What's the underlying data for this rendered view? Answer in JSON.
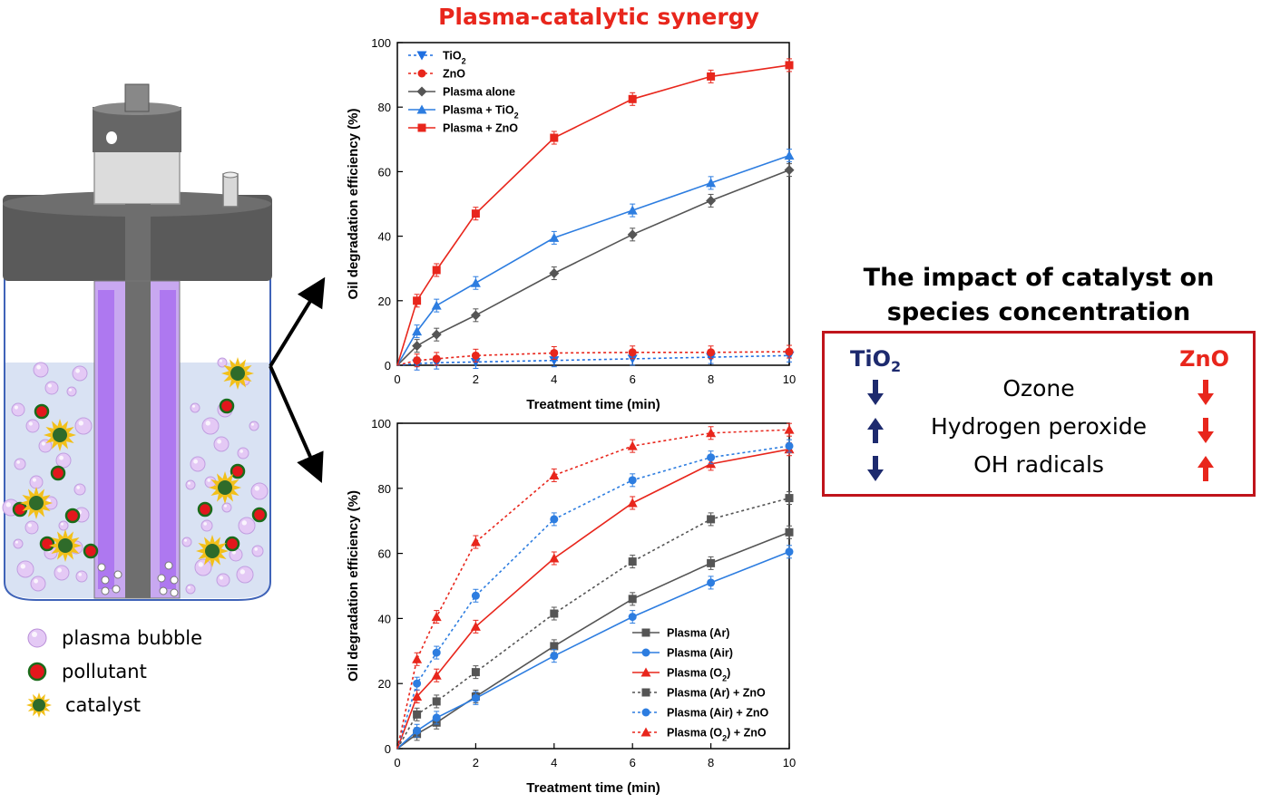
{
  "title": "Plasma-catalytic synergy",
  "legend_left": [
    {
      "label": "plasma bubble",
      "icon": "plasma-bubble-icon"
    },
    {
      "label": "pollutant",
      "icon": "pollutant-icon"
    },
    {
      "label": "catalyst",
      "icon": "catalyst-icon"
    }
  ],
  "impact": {
    "title_line1": "The impact of catalyst on",
    "title_line2": "species concentration",
    "col_left": "TiO",
    "col_left_sub": "2",
    "col_right": "ZnO",
    "rows": [
      {
        "species": "Ozone",
        "left": "down",
        "right": "down"
      },
      {
        "species": "Hydrogen peroxide",
        "left": "up",
        "right": "down"
      },
      {
        "species": "OH radicals",
        "left": "down",
        "right": "up"
      }
    ]
  },
  "chart_data": [
    {
      "type": "line",
      "xlabel": "Treatment time (min)",
      "ylabel": "Oil degradation efficiency (%)",
      "xlim": [
        0,
        10
      ],
      "ylim": [
        0,
        100
      ],
      "xticks": [
        0,
        2,
        4,
        6,
        8,
        10
      ],
      "yticks": [
        0,
        20,
        40,
        60,
        80,
        100
      ],
      "legend_position": "top-left",
      "x": [
        0,
        0.5,
        1,
        2,
        4,
        6,
        8,
        10
      ],
      "series": [
        {
          "name": "TiO",
          "sub": "2",
          "tail": "",
          "color": "#1f6fe0",
          "marker": "tri-down",
          "dash": true,
          "values": [
            0,
            0.5,
            0.8,
            1.0,
            1.5,
            2.0,
            2.5,
            3.0
          ]
        },
        {
          "name": "ZnO",
          "sub": "",
          "tail": "",
          "color": "#e8261c",
          "marker": "circle",
          "dash": true,
          "values": [
            0,
            1.5,
            2.0,
            3.0,
            3.8,
            4.0,
            4.0,
            4.2
          ]
        },
        {
          "name": "Plasma alone",
          "sub": "",
          "tail": "",
          "color": "#555555",
          "marker": "diamond",
          "dash": false,
          "values": [
            0,
            6,
            9.5,
            15.5,
            28.5,
            40.5,
            51,
            60.5
          ]
        },
        {
          "name": "Plasma + TiO",
          "sub": "2",
          "tail": "",
          "color": "#2d7de0",
          "marker": "tri-up",
          "dash": false,
          "values": [
            0,
            10.5,
            18.5,
            25.5,
            39.5,
            48,
            56.5,
            65
          ]
        },
        {
          "name": "Plasma + ZnO",
          "sub": "",
          "tail": "",
          "color": "#e8261c",
          "marker": "square",
          "dash": false,
          "values": [
            0,
            20,
            29.5,
            47,
            70.5,
            82.5,
            89.5,
            93
          ]
        }
      ]
    },
    {
      "type": "line",
      "xlabel": "Treatment time (min)",
      "ylabel": "Oil degradation efficiency (%)",
      "xlim": [
        0,
        10
      ],
      "ylim": [
        0,
        100
      ],
      "xticks": [
        0,
        2,
        4,
        6,
        8,
        10
      ],
      "yticks": [
        0,
        20,
        40,
        60,
        80,
        100
      ],
      "legend_position": "bottom-right",
      "x": [
        0,
        0.5,
        1,
        2,
        4,
        6,
        8,
        10
      ],
      "series": [
        {
          "name": "Plasma (Ar)",
          "sub": "",
          "tail": "",
          "color": "#555555",
          "marker": "square",
          "dash": false,
          "values": [
            0,
            4.5,
            8,
            16,
            31.5,
            46,
            57,
            66.5
          ]
        },
        {
          "name": "Plasma (Air)",
          "sub": "",
          "tail": "",
          "color": "#2d7de0",
          "marker": "circle",
          "dash": false,
          "values": [
            0,
            5.5,
            9.5,
            15.5,
            28.5,
            40.5,
            51,
            60.5
          ]
        },
        {
          "name": "Plasma (O",
          "sub": "2",
          "tail": ")",
          "color": "#e8261c",
          "marker": "tri-up",
          "dash": false,
          "values": [
            0,
            16,
            22.5,
            37.5,
            58.5,
            75.5,
            87.5,
            92
          ]
        },
        {
          "name": "Plasma (Ar) + ZnO",
          "sub": "",
          "tail": "",
          "color": "#555555",
          "marker": "square",
          "dash": true,
          "values": [
            0,
            10.5,
            14.5,
            23.5,
            41.5,
            57.5,
            70.5,
            77
          ]
        },
        {
          "name": "Plasma (Air) + ZnO",
          "sub": "",
          "tail": "",
          "color": "#2d7de0",
          "marker": "circle",
          "dash": true,
          "values": [
            0,
            20,
            29.5,
            47,
            70.5,
            82.5,
            89.5,
            93
          ]
        },
        {
          "name": "Plasma (O",
          "sub": "2",
          "tail": ") + ZnO",
          "color": "#e8261c",
          "marker": "tri-up",
          "dash": true,
          "values": [
            0,
            27.5,
            40.5,
            63.5,
            84,
            93,
            97,
            98
          ]
        }
      ]
    }
  ]
}
